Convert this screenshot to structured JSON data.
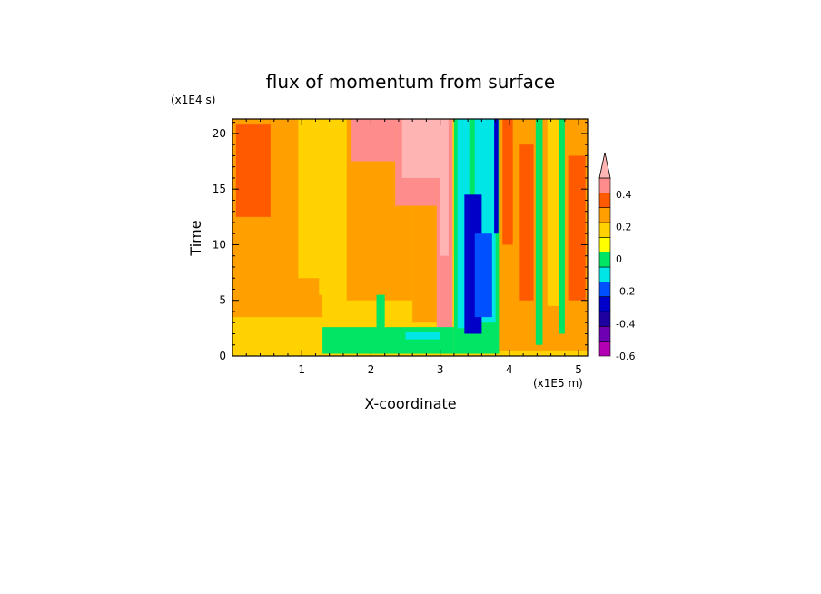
{
  "chart_data": {
    "type": "heatmap",
    "title": "flux of momentum from surface",
    "xlabel": "X-coordinate",
    "ylabel": "Time",
    "x_unit": "(x1E5 m)",
    "y_unit": "(x1E4 s)",
    "xlim": [
      0,
      5.13
    ],
    "ylim": [
      0,
      21.3
    ],
    "x_ticks": [
      1,
      2,
      3,
      4,
      5
    ],
    "y_ticks": [
      0,
      5,
      10,
      15,
      20
    ],
    "colorbar": {
      "levels": [
        -0.6,
        -0.5,
        -0.4,
        -0.3,
        -0.2,
        -0.1,
        0,
        0.1,
        0.2,
        0.3,
        0.4,
        0.5
      ],
      "colors": [
        "#b400b4",
        "#6e00b4",
        "#1e00a0",
        "#0000c8",
        "#0050ff",
        "#00e6e6",
        "#00e664",
        "#ffff00",
        "#ffd200",
        "#ffa000",
        "#ff5a00",
        "#ff8c8c",
        "#ffb4b4"
      ],
      "labeled_ticks": [
        {
          "value": 0.4,
          "label": "0.4"
        },
        {
          "value": 0.2,
          "label": "0.2"
        },
        {
          "value": 0,
          "label": "0"
        },
        {
          "value": -0.2,
          "label": "-0.2"
        },
        {
          "value": -0.4,
          "label": "-0.4"
        },
        {
          "value": -0.6,
          "label": "-0.6"
        }
      ]
    },
    "regions": [
      {
        "x": [
          0,
          5.13
        ],
        "y": [
          0,
          21.3
        ],
        "level": 1
      },
      {
        "x": [
          0,
          1.3
        ],
        "y": [
          3.5,
          21.3
        ],
        "level": 2
      },
      {
        "x": [
          0.05,
          0.55
        ],
        "y": [
          12.5,
          20.8
        ],
        "level": 3
      },
      {
        "x": [
          0.95,
          1.3
        ],
        "y": [
          7,
          21.3
        ],
        "level": 1
      },
      {
        "x": [
          1.25,
          1.65
        ],
        "y": [
          5.5,
          21.3
        ],
        "level": 1
      },
      {
        "x": [
          1.65,
          2.6
        ],
        "y": [
          5,
          21.3
        ],
        "level": 2
      },
      {
        "x": [
          2.6,
          3.15
        ],
        "y": [
          3,
          21.3
        ],
        "level": 2
      },
      {
        "x": [
          1.72,
          2.35
        ],
        "y": [
          17.5,
          21.3
        ],
        "level": 4
      },
      {
        "x": [
          2.35,
          2.95
        ],
        "y": [
          13.5,
          21.3
        ],
        "level": 4
      },
      {
        "x": [
          2.95,
          3.18
        ],
        "y": [
          1.5,
          21.3
        ],
        "level": 4
      },
      {
        "x": [
          2.45,
          3.0
        ],
        "y": [
          16,
          21.3
        ],
        "level": 5
      },
      {
        "x": [
          3.0,
          3.12
        ],
        "y": [
          9,
          21.3
        ],
        "level": 5
      },
      {
        "x": [
          1.3,
          3.2
        ],
        "y": [
          0.2,
          2.6
        ],
        "level": -1
      },
      {
        "x": [
          2.08,
          2.2
        ],
        "y": [
          2.5,
          5.5
        ],
        "level": -1
      },
      {
        "x": [
          3.2,
          3.85
        ],
        "y": [
          0.2,
          21.3
        ],
        "level": -1
      },
      {
        "x": [
          2.5,
          3.0
        ],
        "y": [
          1.5,
          2.2
        ],
        "level": -2
      },
      {
        "x": [
          3.25,
          3.42
        ],
        "y": [
          2.5,
          21.3
        ],
        "level": -2
      },
      {
        "x": [
          3.5,
          3.8
        ],
        "y": [
          3,
          21.3
        ],
        "level": -2
      },
      {
        "x": [
          3.35,
          3.6
        ],
        "y": [
          2,
          14.5
        ],
        "level": -4
      },
      {
        "x": [
          3.5,
          3.75
        ],
        "y": [
          3.5,
          11
        ],
        "level": -3
      },
      {
        "x": [
          3.78,
          3.84
        ],
        "y": [
          11,
          21.3
        ],
        "level": -4
      },
      {
        "x": [
          3.85,
          5.13
        ],
        "y": [
          0.5,
          21.3
        ],
        "level": 2
      },
      {
        "x": [
          3.9,
          4.05
        ],
        "y": [
          10,
          21.3
        ],
        "level": 3
      },
      {
        "x": [
          4.15,
          4.35
        ],
        "y": [
          5,
          19
        ],
        "level": 3
      },
      {
        "x": [
          4.38,
          4.48
        ],
        "y": [
          1,
          21.3
        ],
        "level": -1
      },
      {
        "x": [
          4.55,
          4.72
        ],
        "y": [
          4.5,
          21.3
        ],
        "level": 1
      },
      {
        "x": [
          4.72,
          4.8
        ],
        "y": [
          2,
          21.3
        ],
        "level": -1
      },
      {
        "x": [
          4.85,
          5.1
        ],
        "y": [
          5,
          18
        ],
        "level": 3
      }
    ]
  }
}
